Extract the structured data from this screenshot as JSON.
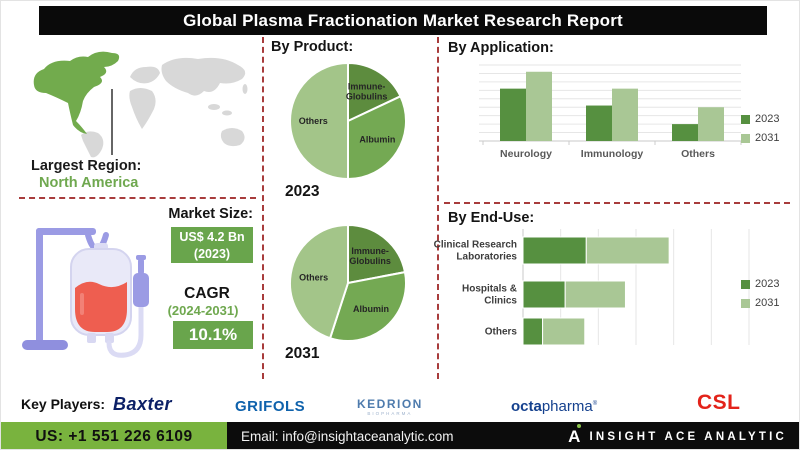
{
  "title": "Global Plasma Fractionation Market Research Report",
  "left_panel": {
    "largest_region_label": "Largest Region:",
    "largest_region_value": "North America",
    "market_size_label": "Market Size:",
    "market_size_value": "US$ 4.2 Bn",
    "market_size_year": "(2023)",
    "cagr_label": "CAGR",
    "cagr_period": "(2024-2031)",
    "cagr_value": "10.1%"
  },
  "chart_data": [
    {
      "type": "pie",
      "title": "By Product:",
      "year_label": "2023",
      "slices": [
        {
          "label": "Immune-Globulins",
          "label_lines": [
            "Immune-",
            "Globulins"
          ],
          "value": 18,
          "color": "#5d8c3e"
        },
        {
          "label": "Albumin",
          "label_lines": [
            "Albumin"
          ],
          "value": 32,
          "color": "#74a953"
        },
        {
          "label": "Others",
          "label_lines": [
            "Others"
          ],
          "value": 50,
          "color": "#a3c589"
        }
      ]
    },
    {
      "type": "pie",
      "title": "By Product:",
      "year_label": "2031",
      "slices": [
        {
          "label": "Immune-Globulins",
          "label_lines": [
            "Immune-",
            "Globulins"
          ],
          "value": 22,
          "color": "#5d8c3e"
        },
        {
          "label": "Albumin",
          "label_lines": [
            "Albumin"
          ],
          "value": 33,
          "color": "#74a953"
        },
        {
          "label": "Others",
          "label_lines": [
            "Others"
          ],
          "value": 45,
          "color": "#a3c589"
        }
      ]
    },
    {
      "type": "bar",
      "title": "By Application:",
      "orientation": "vertical",
      "categories": [
        "Neurology",
        "Immunology",
        "Others"
      ],
      "series": [
        {
          "name": "2023",
          "color": "#569040",
          "values": [
            62,
            42,
            20
          ]
        },
        {
          "name": "2031",
          "color": "#a9c795",
          "values": [
            82,
            62,
            40
          ]
        }
      ],
      "ylim": [
        0,
        90
      ],
      "grid": true,
      "legend_position": "right"
    },
    {
      "type": "bar",
      "title": "By End-Use:",
      "orientation": "horizontal",
      "stacked": true,
      "categories": [
        "Clinical Research Laboratories",
        "Hospitals & Clinics",
        "Others"
      ],
      "category_lines": [
        [
          "Clinical Research",
          "Laboratories"
        ],
        [
          "Hospitals &",
          "Clinics"
        ],
        [
          "Others"
        ]
      ],
      "series": [
        {
          "name": "2023",
          "color": "#569040",
          "values": [
            42,
            28,
            13
          ]
        },
        {
          "name": "2031",
          "color": "#a9c795",
          "values": [
            55,
            40,
            28
          ]
        }
      ],
      "xlim": [
        0,
        150
      ],
      "grid": true,
      "legend_position": "right"
    }
  ],
  "key_players": {
    "label": "Key Players:",
    "players": [
      {
        "name": "Baxter"
      },
      {
        "name": "GRIFOLS"
      },
      {
        "name": "KEDRION",
        "sub": "BIOPHARMA"
      },
      {
        "name_bold": "octa",
        "name_rest": "pharma",
        "mark": "®"
      },
      {
        "name": "CSL"
      }
    ]
  },
  "footer": {
    "phone": "US: +1 551 226 6109",
    "email": "Email: info@insightaceanalytic.com",
    "brand": "INSIGHT ACE ANALYTIC"
  },
  "colors": {
    "series_2023": "#569040",
    "series_2031": "#a9c795",
    "pie_dark": "#5d8c3e",
    "pie_mid": "#74a953",
    "pie_light": "#a3c589",
    "badge_green": "#69a54c",
    "footer_green": "#79b33e",
    "accent_text_green": "#6fa84f",
    "divider_red": "#a83c3c",
    "map_highlight_green": "#72ab4d",
    "map_gray": "#d8d8d8",
    "title_bg": "#0a0a0a"
  }
}
